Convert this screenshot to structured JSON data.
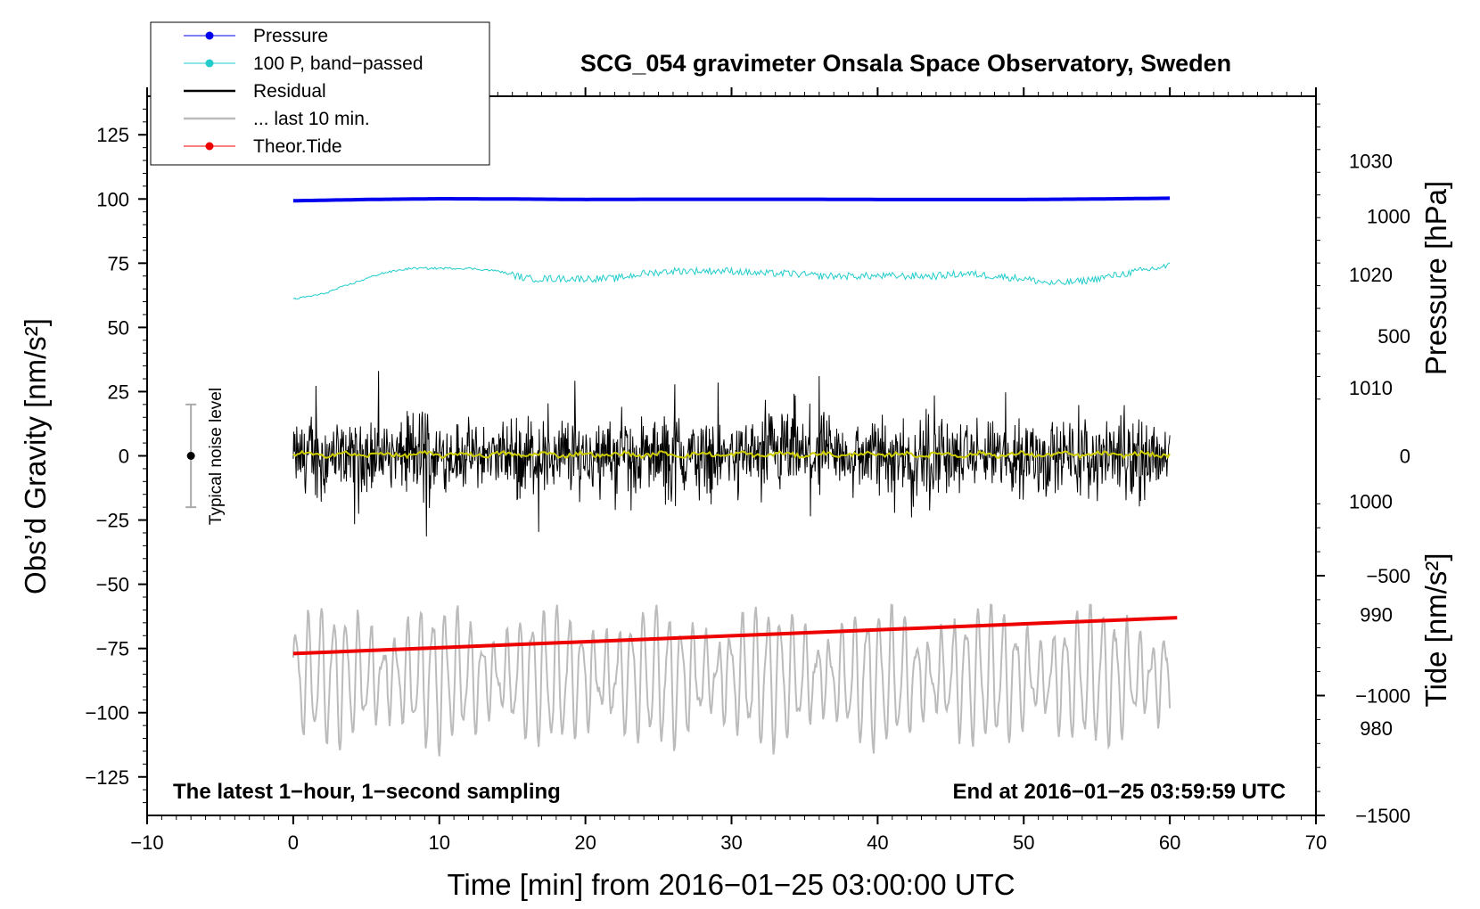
{
  "chart_data": {
    "type": "line",
    "title": "SCG_054 gravimeter Onsala Space Observatory, Sweden",
    "xlabel": "Time [min] from 2016−01−25 03:00:00 UTC",
    "ylabel_left": "Obs’d Gravity [nm/s²]",
    "ylabel_right_top": "Pressure [hPa]",
    "ylabel_right_bottom": "Tide [nm/s²]",
    "xlim": [
      -10,
      70
    ],
    "ylim_left": [
      -140,
      140
    ],
    "x_ticks": [
      {
        "value": -10,
        "label": "−10"
      },
      {
        "value": 0,
        "label": "0"
      },
      {
        "value": 10,
        "label": "10"
      },
      {
        "value": 20,
        "label": "20"
      },
      {
        "value": 30,
        "label": "30"
      },
      {
        "value": 40,
        "label": "40"
      },
      {
        "value": 50,
        "label": "50"
      },
      {
        "value": 60,
        "label": "60"
      },
      {
        "value": 70,
        "label": "70"
      }
    ],
    "y_ticks_left": [
      {
        "value": 125,
        "label": "125"
      },
      {
        "value": 100,
        "label": "100"
      },
      {
        "value": 75,
        "label": "75"
      },
      {
        "value": 50,
        "label": "50"
      },
      {
        "value": 25,
        "label": "25"
      },
      {
        "value": 0,
        "label": "0"
      },
      {
        "value": -25,
        "label": "−25"
      },
      {
        "value": -50,
        "label": "−50"
      },
      {
        "value": -75,
        "label": "−75"
      },
      {
        "value": -100,
        "label": "−100"
      },
      {
        "value": -125,
        "label": "−125"
      }
    ],
    "pressure_axis": {
      "range": [
        972.3,
        1035.7
      ],
      "ticks": [
        {
          "value": 1030,
          "label": "1030"
        },
        {
          "value": 1020,
          "label": "1020"
        },
        {
          "value": 1010,
          "label": "1010"
        },
        {
          "value": 1000,
          "label": "1000"
        },
        {
          "value": 990,
          "label": "990"
        },
        {
          "value": 980,
          "label": "980"
        }
      ]
    },
    "tide_axis": {
      "range": [
        -1500,
        1500
      ],
      "ticks": [
        {
          "value": 1000,
          "label": "1000"
        },
        {
          "value": 500,
          "label": "500"
        },
        {
          "value": 0,
          "label": "0"
        },
        {
          "value": -500,
          "label": "−500"
        },
        {
          "value": -1000,
          "label": "−1000"
        },
        {
          "value": -1500,
          "label": "−1500"
        }
      ]
    },
    "series": [
      {
        "name": "Pressure",
        "color": "#0000ee",
        "axis": "left",
        "style": "line-dot",
        "x": [
          0,
          5,
          10,
          15,
          20,
          25,
          30,
          35,
          40,
          45,
          50,
          55,
          60
        ],
        "values": [
          99.3,
          99.8,
          100.1,
          100.0,
          99.8,
          99.9,
          99.9,
          99.9,
          99.8,
          99.8,
          99.8,
          100.0,
          100.3
        ]
      },
      {
        "name": "100 P, band−passed",
        "color": "#22cccc",
        "axis": "left",
        "style": "line-dot",
        "x": [
          0,
          2,
          4,
          6,
          8,
          10,
          12,
          14,
          16,
          18,
          20,
          22,
          24,
          26,
          28,
          30,
          32,
          34,
          36,
          38,
          40,
          42,
          44,
          46,
          48,
          50,
          52,
          54,
          56,
          58,
          60
        ],
        "values": [
          61,
          63,
          67,
          71,
          73,
          73,
          73,
          72,
          69,
          69,
          69,
          69,
          71,
          72,
          72,
          72,
          71,
          71,
          70,
          70,
          70,
          70,
          70,
          71,
          70,
          69,
          67,
          68,
          70,
          72,
          74
        ]
      },
      {
        "name": "Residual",
        "color": "#000000",
        "axis": "left",
        "style": "line",
        "x": [
          0,
          60
        ],
        "values": [
          0,
          0
        ],
        "envelope_max": 35,
        "envelope_min": -38
      },
      {
        "name": "... last 10 min.",
        "color": "#bbbbbb",
        "axis": "left",
        "style": "line",
        "x": [
          0,
          60
        ],
        "values": [
          -86,
          -86
        ],
        "envelope_max": -58,
        "envelope_min": -118
      },
      {
        "name": "Theor.Tide",
        "color": "#ee0000",
        "axis": "left",
        "style": "line-dot",
        "x": [
          0,
          60.5
        ],
        "values": [
          -77,
          -63
        ]
      },
      {
        "name": "Residual (smoothed)",
        "color": "#cccc00",
        "axis": "left",
        "style": "line",
        "legend": false,
        "x": [
          0,
          60
        ],
        "values": [
          0.5,
          0.5
        ]
      }
    ],
    "noise_level": {
      "label": "Typical noise level",
      "x": -7,
      "center": 0,
      "upper": 20,
      "lower": -20
    },
    "annotations": {
      "bottom_left": "The latest 1−hour, 1−second sampling",
      "bottom_right": "End at 2016−01−25 03:59:59 UTC"
    },
    "legend": {
      "position": "top-left outside plot"
    }
  }
}
